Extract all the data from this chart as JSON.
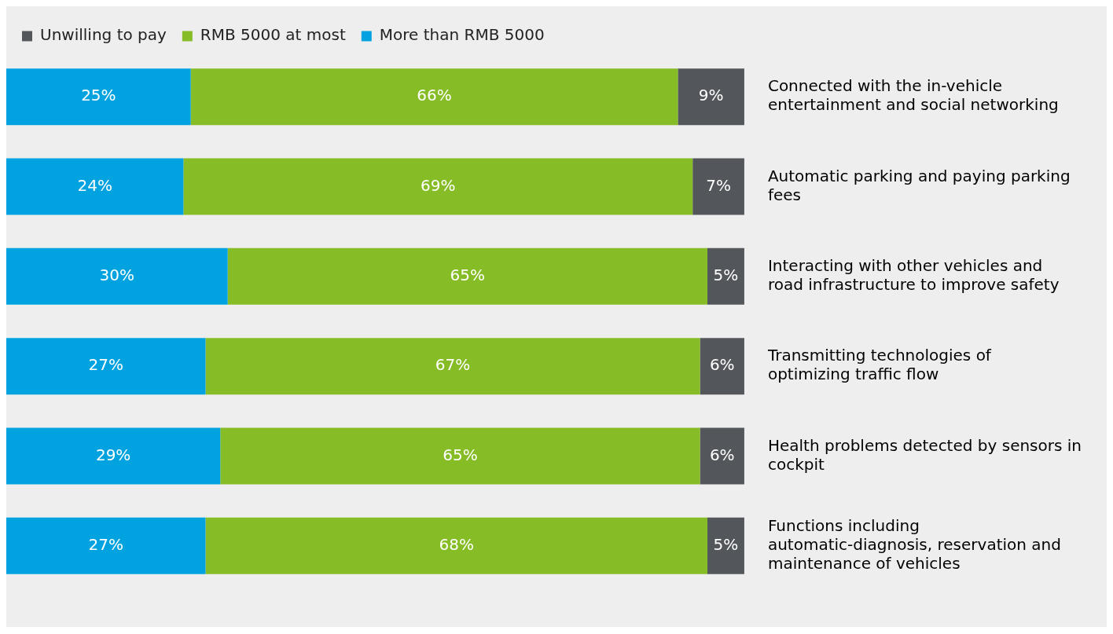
{
  "chart_data": {
    "type": "bar",
    "orientation": "horizontal",
    "stacked": true,
    "legend": "top",
    "tick_labels": "y",
    "categories": [
      "Connected with the in-vehicle entertainment and social networking",
      "Automatic parking and paying parking fees",
      "Interacting with other vehicles and road infrastructure to improve safety",
      "Transmitting technologies of optimizing traffic flow",
      "Health problems detected by sensors in cockpit",
      "Functions including automatic-diagnosis, reservation and maintenance of vehicles"
    ],
    "series": [
      {
        "name": "More than RMB 5000",
        "color": "#00a3e0",
        "values": [
          25,
          24,
          30,
          27,
          29,
          27
        ],
        "value_labels": [
          "25%",
          "24%",
          "30%",
          "27%",
          "29%",
          "27%"
        ]
      },
      {
        "name": "RMB 5000 at most",
        "color": "#86bc25",
        "values": [
          66,
          69,
          65,
          67,
          65,
          68
        ],
        "value_labels": [
          "66%",
          "69%",
          "65%",
          "67%",
          "65%",
          "68%"
        ]
      },
      {
        "name": "Unwilling to pay",
        "color": "#53565a",
        "values": [
          9,
          7,
          5,
          6,
          6,
          5
        ],
        "value_labels": [
          "9%",
          "7%",
          "5%",
          "6%",
          "6%",
          "5%"
        ]
      }
    ]
  }
}
